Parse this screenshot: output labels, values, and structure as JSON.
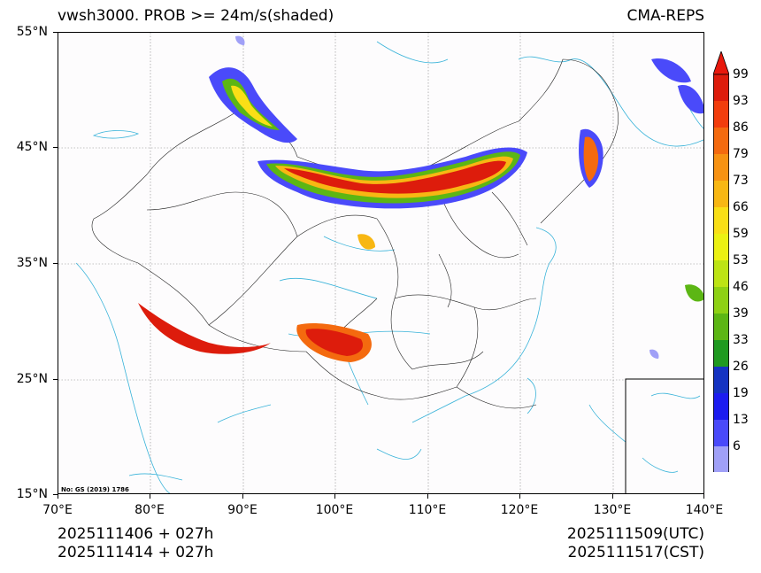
{
  "header": {
    "title_left": "vwsh3000. PROB >= 24m/s(shaded)",
    "title_right": "CMA-REPS"
  },
  "axes": {
    "lat_labels": [
      "55°N",
      "45°N",
      "35°N",
      "25°N",
      "15°N"
    ],
    "lon_labels": [
      "70°E",
      "80°E",
      "90°E",
      "100°E",
      "110°E",
      "120°E",
      "130°E",
      "140°E"
    ]
  },
  "colorbar": {
    "labels": [
      "99",
      "93",
      "86",
      "79",
      "73",
      "66",
      "59",
      "53",
      "46",
      "39",
      "33",
      "26",
      "19",
      "13",
      "6"
    ],
    "colors": [
      "#dd1c0c",
      "#f23d0d",
      "#f46a0f",
      "#f79212",
      "#f8b713",
      "#f9df16",
      "#ecf112",
      "#bde414",
      "#8ed114",
      "#5cb614",
      "#1f9a20",
      "#1533c2",
      "#1c1cf0",
      "#4a4afa",
      "#a0a0f7"
    ],
    "over_color": "#e8180c",
    "under_color": "#ffffff"
  },
  "note": "No: GS (2019) 1786",
  "footer": {
    "init_utc": "2025111406  +  027h",
    "init_cst": "2025111414  +  027h",
    "valid_utc": "2025111509(UTC)",
    "valid_cst": "2025111517(CST)"
  }
}
